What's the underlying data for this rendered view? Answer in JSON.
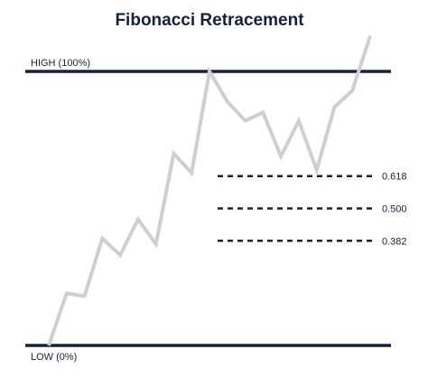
{
  "chart_data": {
    "type": "line",
    "title": "Fibonacci Retracement",
    "high_label": "HIGH (100%)",
    "low_label": "LOW (0%)",
    "levels": [
      {
        "label": "0.618",
        "value": 0.618
      },
      {
        "label": "0.500",
        "value": 0.5
      },
      {
        "label": "0.382",
        "value": 0.382
      }
    ],
    "ylim": [
      0,
      1
    ],
    "price": {
      "x": [
        0,
        1,
        2,
        3,
        4,
        5,
        6,
        7,
        8,
        9,
        10,
        11,
        12,
        13,
        14,
        15,
        16,
        17,
        18
      ],
      "y": [
        0,
        0.19,
        0.18,
        0.39,
        0.33,
        0.46,
        0.37,
        0.7,
        0.63,
        1.0,
        0.89,
        0.82,
        0.85,
        0.69,
        0.82,
        0.64,
        0.87,
        0.93,
        1.13
      ]
    },
    "colors": {
      "price_line": "#cfcfd1",
      "bound_lines": "#16213f",
      "level_lines": "#16213f",
      "text": "#16213f"
    }
  }
}
